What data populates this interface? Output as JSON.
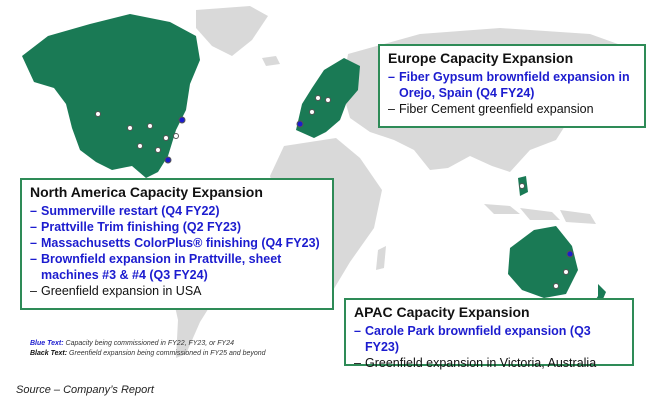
{
  "colors": {
    "land_highlight": "#1a7a55",
    "land_other": "#d9d9d9",
    "box_border": "#2e8b57",
    "blue_text": "#1c1ccf",
    "black_text": "#111111"
  },
  "europe": {
    "title": "Europe Capacity Expansion",
    "items": [
      {
        "text": "Fiber Gypsum brownfield expansion in Orejo, Spain (Q4 FY24)",
        "style": "blue"
      },
      {
        "text": "Fiber Cement greenfield expansion",
        "style": "black"
      }
    ]
  },
  "north_america": {
    "title": "North America Capacity Expansion",
    "items": [
      {
        "text": "Summerville restart  (Q4 FY22)",
        "style": "blue"
      },
      {
        "text": "Prattville Trim finishing (Q2 FY23)",
        "style": "blue"
      },
      {
        "text": "Massachusetts ColorPlus® finishing (Q4 FY23)",
        "style": "blue"
      },
      {
        "text": "Brownfield expansion in Prattville, sheet machines #3 & #4 (Q3 FY24)",
        "style": "blue"
      },
      {
        "text": "Greenfield expansion in USA",
        "style": "black"
      }
    ]
  },
  "apac": {
    "title": "APAC Capacity Expansion",
    "items": [
      {
        "text": "Carole Park brownfield expansion (Q3 FY23)",
        "style": "blue"
      },
      {
        "text": "Greenfield expansion in Victoria, Australia",
        "style": "black"
      }
    ]
  },
  "legend": {
    "blue_key": "Blue Text:",
    "blue_desc": "Capacity being commissioned in FY22, FY23, or FY24",
    "black_key": "Black Text:",
    "black_desc": "Greenfield expansion being commissioned in FY25 and beyond"
  },
  "source": "Source – Company’s Report"
}
